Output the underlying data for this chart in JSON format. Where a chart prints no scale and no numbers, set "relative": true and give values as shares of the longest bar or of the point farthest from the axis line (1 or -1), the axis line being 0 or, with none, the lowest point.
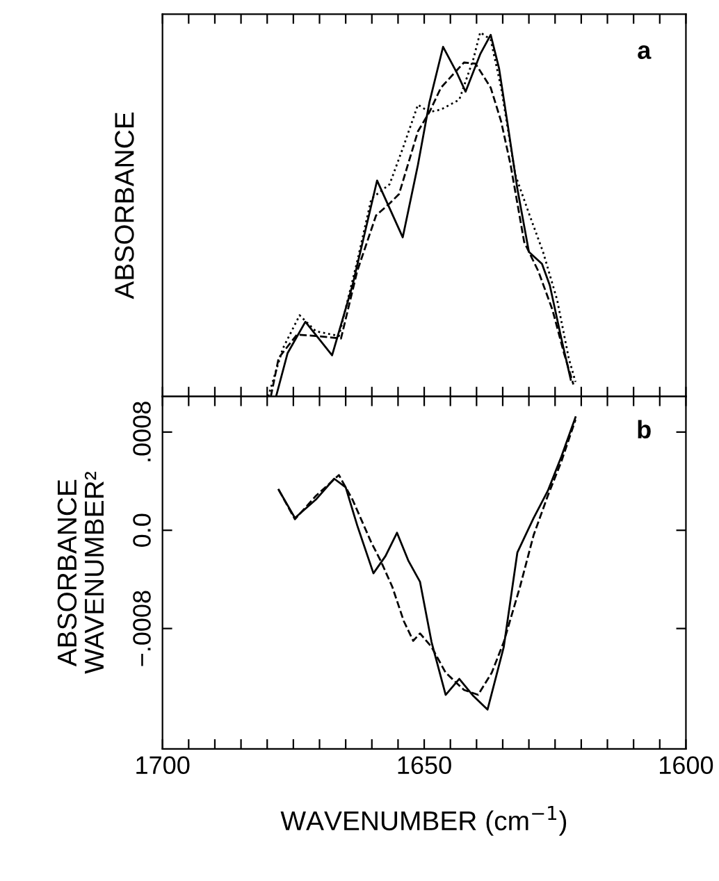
{
  "chart_data": [
    {
      "type": "line",
      "relative": true,
      "xlim": [
        1700,
        1600
      ],
      "xticks": [
        1700,
        {
          "value": 1695,
          "label": null
        },
        {
          "value": 1690,
          "label": null
        },
        {
          "value": 1685,
          "label": null
        },
        {
          "value": 1680,
          "label": null
        },
        {
          "value": 1675,
          "label": null
        },
        {
          "value": 1670,
          "label": null
        },
        {
          "value": 1665,
          "label": null
        },
        {
          "value": 1660,
          "label": null
        },
        {
          "value": 1655,
          "label": null
        },
        1650,
        {
          "value": 1645,
          "label": null
        },
        {
          "value": 1640,
          "label": null
        },
        {
          "value": 1635,
          "label": null
        },
        {
          "value": 1630,
          "label": null
        },
        {
          "value": 1625,
          "label": null
        },
        {
          "value": 1620,
          "label": null
        },
        {
          "value": 1615,
          "label": null
        },
        {
          "value": 1610,
          "label": null
        },
        {
          "value": 1605,
          "label": null
        },
        1600
      ],
      "tick_labels": false,
      "ylabel": "ABSORBANCE",
      "annotations": [
        "a"
      ],
      "marker": "none",
      "series": [
        {
          "color": "#000000",
          "line_style": "solid",
          "x": [
            1678.3,
            1676.1,
            1672.7,
            1667.6,
            1663.7,
            1659.0,
            1654.1,
            1651.2,
            1649.0,
            1646.4,
            1643.7,
            1642.1,
            1639.3,
            1637.3,
            1635.7,
            1634.0,
            1632.2,
            1630.0,
            1627.5,
            1626.0,
            1623.8,
            1622.0
          ],
          "values": [
            0,
            0.119,
            0.205,
            0.113,
            0.305,
            0.593,
            0.437,
            0.636,
            0.808,
            0.96,
            0.887,
            0.837,
            0.94,
            0.993,
            0.901,
            0.742,
            0.57,
            0.397,
            0.364,
            0.305,
            0.159,
            0.046
          ]
        },
        {
          "color": "#000000",
          "line_style": "dashed",
          "x": [
            1679.3,
            1677.8,
            1674.3,
            1670.7,
            1665.9,
            1662.8,
            1659.2,
            1656.6,
            1654.8,
            1651.2,
            1649.0,
            1646.8,
            1642.4,
            1640.2,
            1637.3,
            1635.3,
            1633.5,
            1630.9,
            1628.2,
            1625.5,
            1623.3,
            1621.5
          ],
          "values": [
            0,
            0.106,
            0.17,
            0.166,
            0.159,
            0.344,
            0.497,
            0.53,
            0.556,
            0.728,
            0.781,
            0.848,
            0.917,
            0.914,
            0.848,
            0.755,
            0.636,
            0.424,
            0.344,
            0.238,
            0.119,
            0.033
          ]
        },
        {
          "color": "#000000",
          "line_style": "dotted",
          "x": [
            1679.8,
            1677.0,
            1673.8,
            1670.7,
            1666.3,
            1662.8,
            1660.1,
            1656.6,
            1653.9,
            1651.2,
            1649.0,
            1646.8,
            1643.3,
            1640.6,
            1639.3,
            1637.3,
            1635.3,
            1632.6,
            1630.0,
            1627.3,
            1624.6,
            1622.4,
            1621.1
          ],
          "values": [
            0,
            0.132,
            0.223,
            0.179,
            0.166,
            0.371,
            0.543,
            0.583,
            0.689,
            0.801,
            0.781,
            0.788,
            0.815,
            0.927,
            1.0,
            0.98,
            0.848,
            0.609,
            0.503,
            0.397,
            0.265,
            0.106,
            0.04
          ]
        }
      ]
    },
    {
      "type": "line",
      "xlim": [
        1700,
        1600
      ],
      "ylim": [
        -0.00178,
        0.00109
      ],
      "xticks": [
        1700,
        {
          "value": 1695,
          "label": null
        },
        {
          "value": 1690,
          "label": null
        },
        {
          "value": 1685,
          "label": null
        },
        {
          "value": 1680,
          "label": null
        },
        {
          "value": 1675,
          "label": null
        },
        {
          "value": 1670,
          "label": null
        },
        {
          "value": 1665,
          "label": null
        },
        {
          "value": 1660,
          "label": null
        },
        {
          "value": 1655,
          "label": null
        },
        1650,
        {
          "value": 1645,
          "label": null
        },
        {
          "value": 1640,
          "label": null
        },
        {
          "value": 1635,
          "label": null
        },
        {
          "value": 1630,
          "label": null
        },
        {
          "value": 1625,
          "label": null
        },
        {
          "value": 1620,
          "label": null
        },
        {
          "value": 1615,
          "label": null
        },
        {
          "value": 1610,
          "label": null
        },
        {
          "value": 1605,
          "label": null
        },
        1600
      ],
      "yticks": [
        {
          "value": -0.0008,
          "label": "−.0008"
        },
        {
          "value": 0,
          "label": "0.0"
        },
        {
          "value": 0.0008,
          "label": ".0008"
        }
      ],
      "xlabel": "WAVENUMBER (cm$^{−1}$)",
      "ylabel": "ABSORBANCE\nWAVENUMBER²",
      "annotations": [
        "b"
      ],
      "marker": "none",
      "series": [
        {
          "color": "#000000",
          "line_style": "solid",
          "x": [
            1677.8,
            1674.7,
            1670.7,
            1667.2,
            1665.0,
            1662.8,
            1659.7,
            1657.4,
            1655.2,
            1653.0,
            1650.8,
            1648.6,
            1645.9,
            1643.3,
            1640.6,
            1637.9,
            1634.8,
            1632.2,
            1629.1,
            1626.4,
            1623.8,
            1621.1
          ],
          "values": [
            0.00033,
            0.0001,
            0.00025,
            0.00042,
            0.00035,
            4e-05,
            -0.00035,
            -0.00021,
            -2e-05,
            -0.00025,
            -0.00042,
            -0.00091,
            -0.00134,
            -0.00121,
            -0.00135,
            -0.00146,
            -0.00095,
            -0.00018,
            0.0001,
            0.00032,
            0.0006,
            0.00092
          ]
        },
        {
          "color": "#000000",
          "line_style": "dashed",
          "x": [
            1677.8,
            1674.7,
            1670.7,
            1666.3,
            1663.7,
            1660.1,
            1658.3,
            1656.1,
            1653.9,
            1652.1,
            1650.8,
            1648.6,
            1645.9,
            1642.4,
            1639.7,
            1637.1,
            1634.8,
            1631.7,
            1629.1,
            1626.4,
            1623.8,
            1621.1
          ],
          "values": [
            0.00033,
            9e-05,
            0.00028,
            0.00045,
            0.00025,
            -0.0001,
            -0.00025,
            -0.00046,
            -0.00074,
            -0.0009,
            -0.00084,
            -0.00095,
            -0.00116,
            -0.0013,
            -0.00134,
            -0.00116,
            -0.00091,
            -0.00046,
            -4e-05,
            0.00028,
            0.00056,
            0.0009
          ]
        }
      ]
    }
  ]
}
